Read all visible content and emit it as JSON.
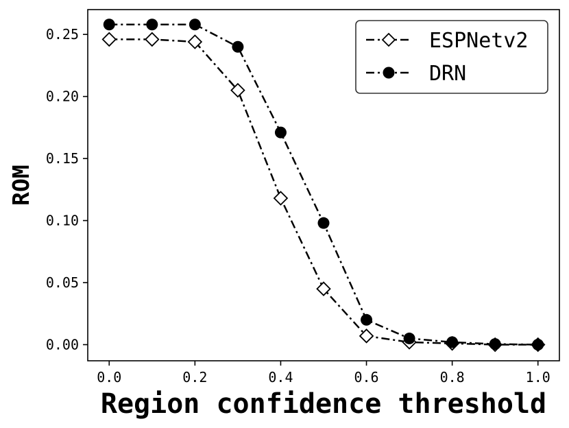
{
  "chart_data": {
    "type": "line",
    "title": "",
    "xlabel": "Region confidence threshold",
    "ylabel": "ROM",
    "xlim": [
      -0.05,
      1.05
    ],
    "ylim": [
      -0.013,
      0.27
    ],
    "xticks": [
      0.0,
      0.2,
      0.4,
      0.6,
      0.8,
      1.0
    ],
    "xtick_labels": [
      "0.0",
      "0.2",
      "0.4",
      "0.6",
      "0.8",
      "1.0"
    ],
    "yticks": [
      0.0,
      0.05,
      0.1,
      0.15,
      0.2,
      0.25
    ],
    "ytick_labels": [
      "0.00",
      "0.05",
      "0.10",
      "0.15",
      "0.20",
      "0.25"
    ],
    "grid": false,
    "legend_position": "top-right",
    "x": [
      0.0,
      0.1,
      0.2,
      0.3,
      0.4,
      0.5,
      0.6,
      0.7,
      0.8,
      0.9,
      1.0
    ],
    "series": [
      {
        "name": "ESPNetv2",
        "marker": "open-diamond",
        "line_style": "dash-dot",
        "color": "#000000",
        "values": [
          0.246,
          0.246,
          0.244,
          0.205,
          0.118,
          0.045,
          0.007,
          0.002,
          0.001,
          0.0,
          0.0
        ]
      },
      {
        "name": "DRN",
        "marker": "filled-circle",
        "line_style": "dash-dot",
        "color": "#000000",
        "values": [
          0.258,
          0.258,
          0.258,
          0.24,
          0.171,
          0.098,
          0.02,
          0.005,
          0.002,
          0.0005,
          0.0
        ]
      }
    ]
  }
}
